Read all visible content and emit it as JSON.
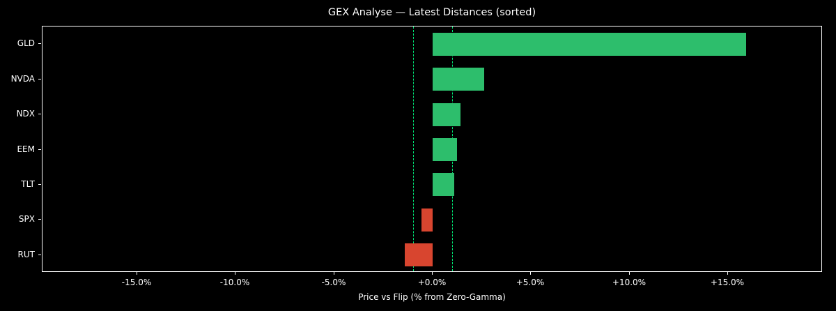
{
  "title": "GEX Analyse — Latest Distances (sorted)",
  "chart_data": {
    "type": "bar",
    "orientation": "horizontal",
    "title": "GEX Analyse — Latest Distances (sorted)",
    "xlabel": "Price vs Flip (% from Zero-Gamma)",
    "categories": [
      "GLD",
      "NVDA",
      "NDX",
      "EEM",
      "TLT",
      "SPX",
      "RUT"
    ],
    "values": [
      15.9,
      2.6,
      1.4,
      1.25,
      1.1,
      -0.55,
      -1.4
    ],
    "xlim": [
      -19.8,
      19.8
    ],
    "x_ticks": [
      {
        "value": -15,
        "label": "-15.0%"
      },
      {
        "value": -10,
        "label": "-10.0%"
      },
      {
        "value": -5,
        "label": "-5.0%"
      },
      {
        "value": 0,
        "label": "+0.0%"
      },
      {
        "value": 5,
        "label": "+5.0%"
      },
      {
        "value": 10,
        "label": "+10.0%"
      },
      {
        "value": 15,
        "label": "+15.0%"
      }
    ],
    "reference_lines": [
      {
        "value": -1.0,
        "style": "dashed"
      },
      {
        "value": 1.0,
        "style": "dashed"
      }
    ],
    "legend": null,
    "grid": false,
    "colors": {
      "positive_bar": "#2dbe6c",
      "negative_bar": "#d8452f",
      "reference_line": "#00e676",
      "background": "#000000",
      "text": "#ffffff",
      "spine": "#ffffff"
    }
  }
}
